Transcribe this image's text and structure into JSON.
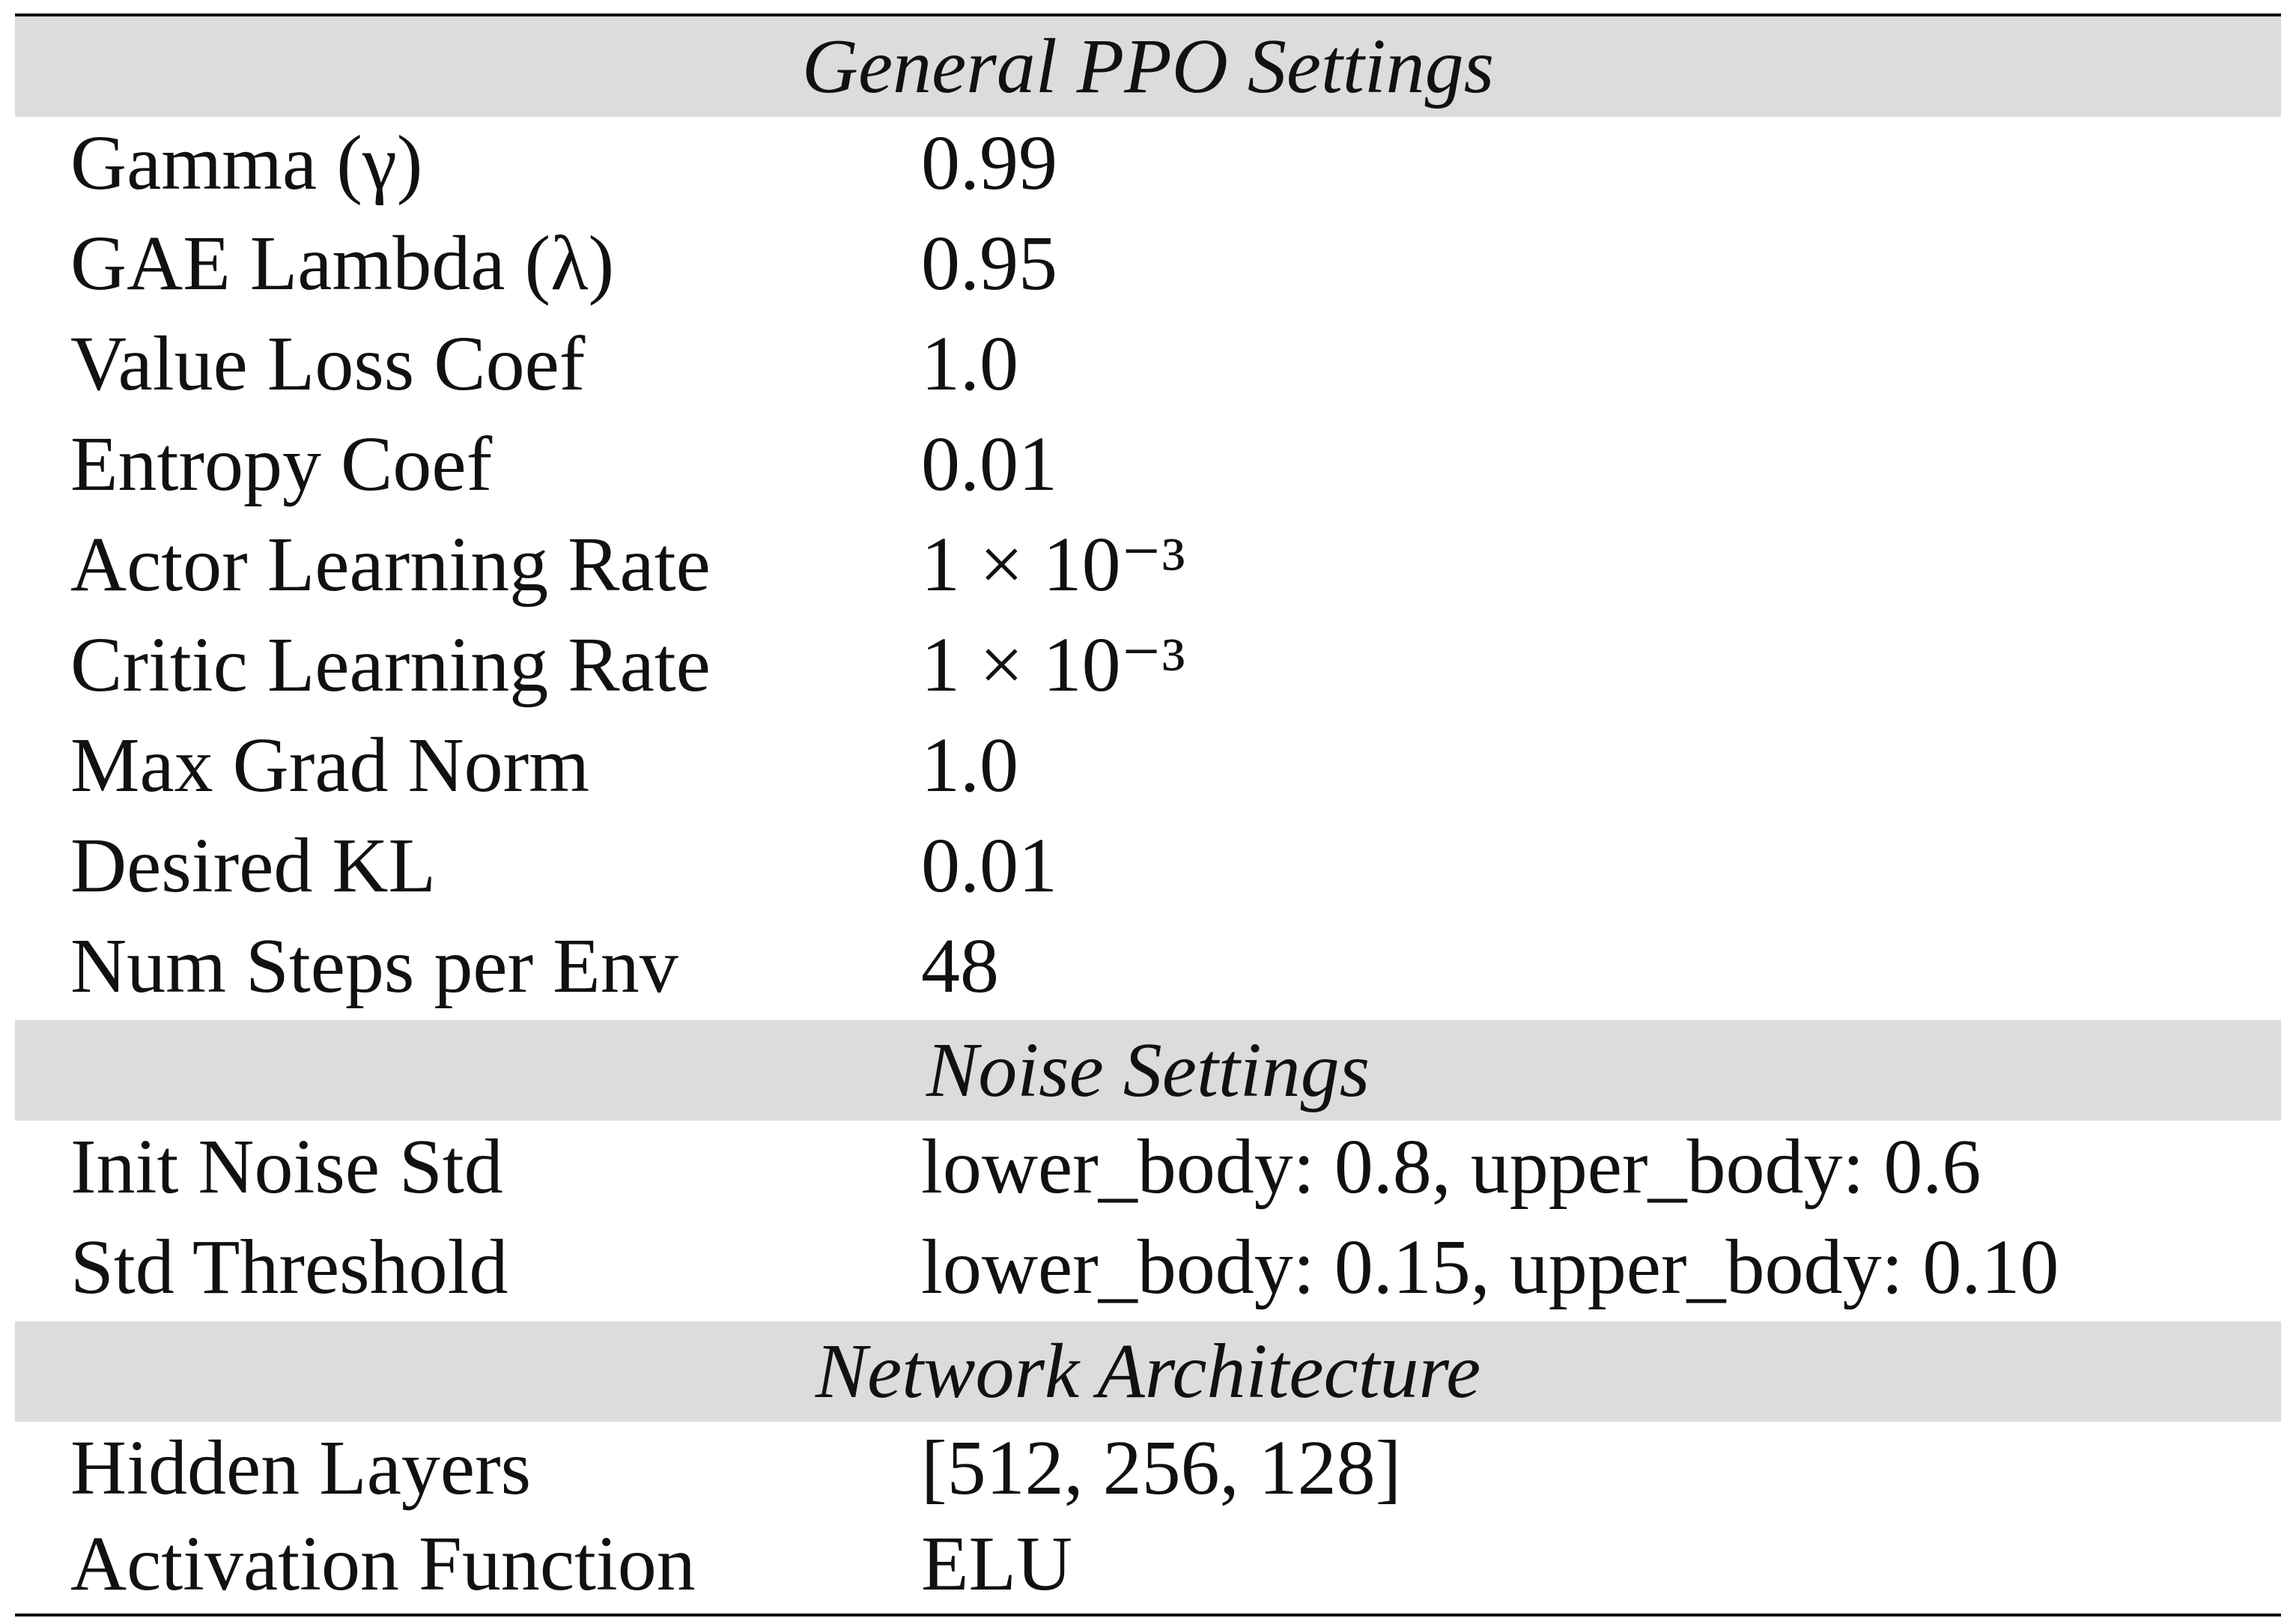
{
  "sections": [
    {
      "title": "General PPO Settings",
      "rows": [
        {
          "param": "Gamma (γ)",
          "value": "0.99"
        },
        {
          "param": "GAE Lambda (λ)",
          "value": "0.95"
        },
        {
          "param": "Value Loss Coef",
          "value": "1.0"
        },
        {
          "param": "Entropy Coef",
          "value": "0.01"
        },
        {
          "param": "Actor Learning Rate",
          "value": "1 × 10⁻³"
        },
        {
          "param": "Critic Learning Rate",
          "value": "1 × 10⁻³"
        },
        {
          "param": "Max Grad Norm",
          "value": "1.0"
        },
        {
          "param": "Desired KL",
          "value": "0.01"
        },
        {
          "param": "Num Steps per Env",
          "value": "48"
        }
      ]
    },
    {
      "title": "Noise Settings",
      "rows": [
        {
          "param": "Init Noise Std",
          "value": "lower_body: 0.8, upper_body: 0.6"
        },
        {
          "param": "Std Threshold",
          "value": "lower_body: 0.15, upper_body: 0.10"
        }
      ]
    },
    {
      "title": "Network Architecture",
      "rows": [
        {
          "param": "Hidden Layers",
          "value": "[512, 256, 128]"
        },
        {
          "param": "Activation Function",
          "value": "ELU"
        }
      ]
    }
  ]
}
